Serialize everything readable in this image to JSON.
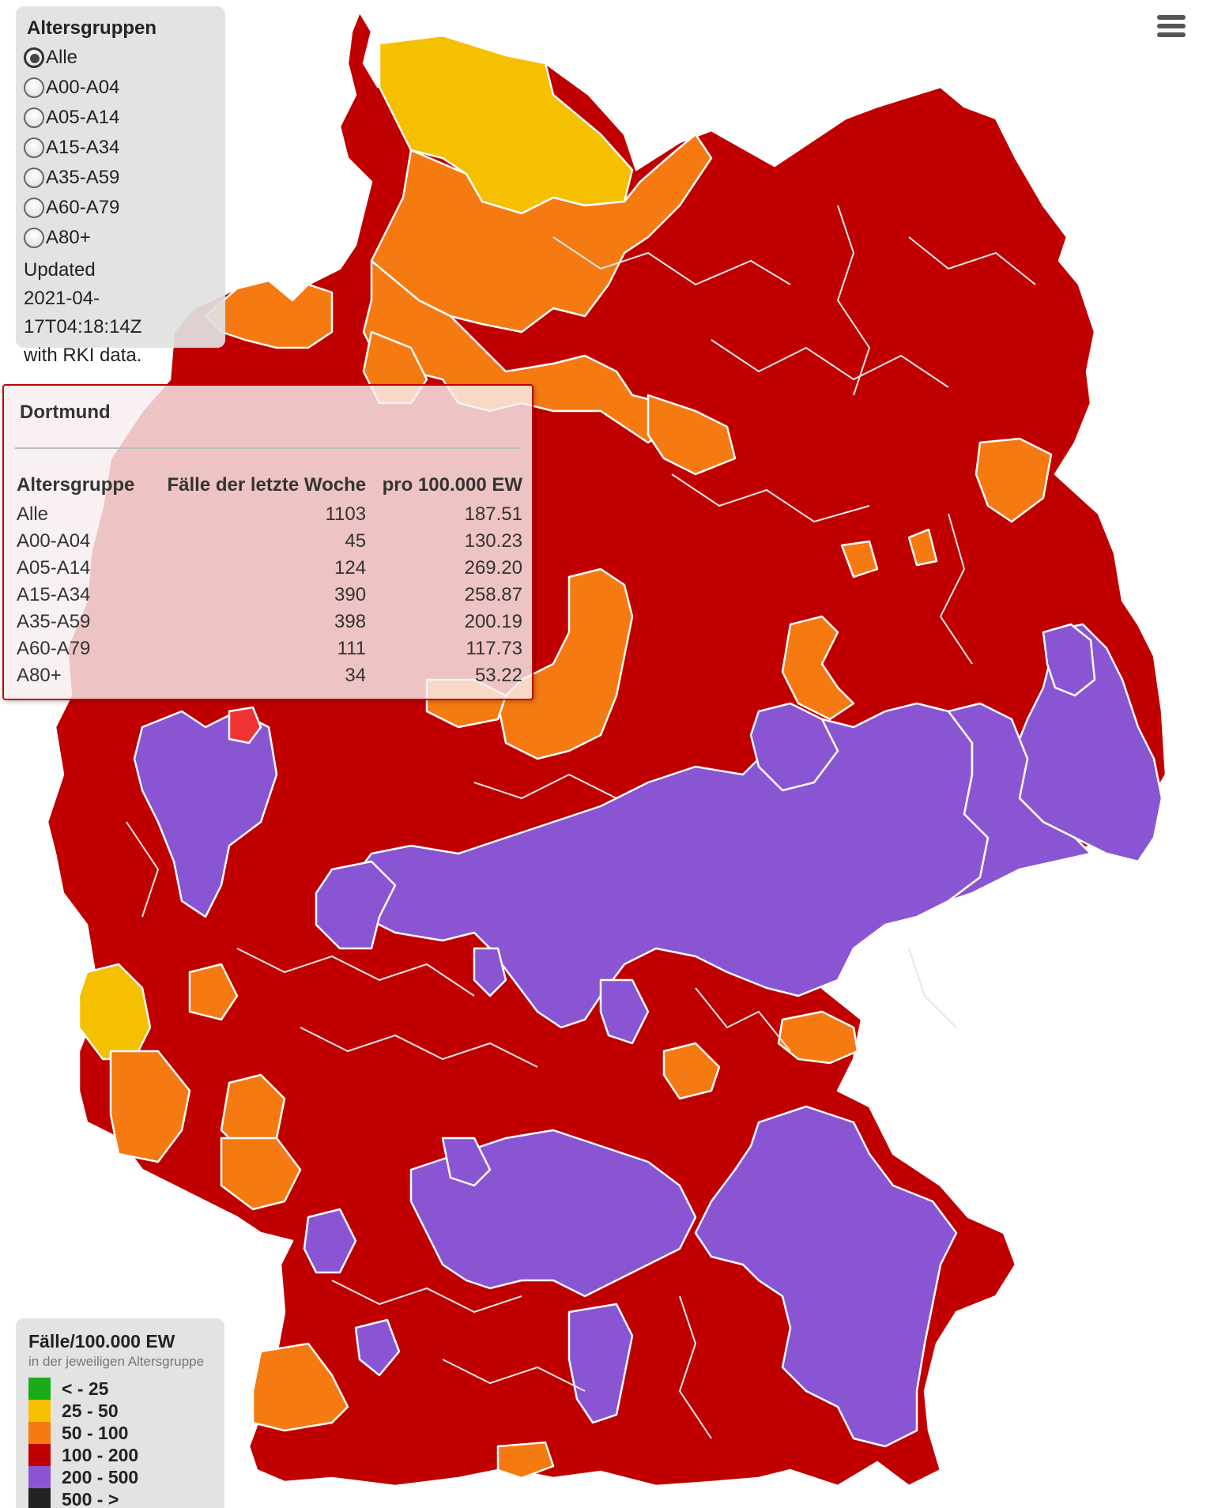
{
  "age_panel": {
    "title": "Altersgruppen",
    "options": [
      {
        "label": "Alle",
        "selected": true
      },
      {
        "label": "A00-A04",
        "selected": false
      },
      {
        "label": "A05-A14",
        "selected": false
      },
      {
        "label": "A15-A34",
        "selected": false
      },
      {
        "label": "A35-A59",
        "selected": false
      },
      {
        "label": "A60-A79",
        "selected": false
      },
      {
        "label": "A80+",
        "selected": false
      }
    ],
    "updated_lines": [
      "Updated",
      "2021-04-17T04:18:14Z",
      "with RKI data."
    ]
  },
  "menu": {
    "icon": "hamburger-menu-icon"
  },
  "tooltip": {
    "district": "Dortmund",
    "columns": [
      "Altersgruppe",
      "Fälle der letzte Woche",
      "pro 100.000 EW"
    ],
    "rows": [
      [
        "Alle",
        "1103",
        "187.51"
      ],
      [
        "A00-A04",
        "45",
        "130.23"
      ],
      [
        "A05-A14",
        "124",
        "269.20"
      ],
      [
        "A15-A34",
        "390",
        "258.87"
      ],
      [
        "A35-A59",
        "398",
        "200.19"
      ],
      [
        "A60-A79",
        "111",
        "117.73"
      ],
      [
        "A80+",
        "34",
        "53.22"
      ]
    ]
  },
  "legend": {
    "title": "Fälle/100.000 EW",
    "subtitle": "in der jeweiligen Altersgruppe",
    "items": [
      {
        "label": "< - 25",
        "color": "#1aaa1a"
      },
      {
        "label": "25 - 50",
        "color": "#f5c000"
      },
      {
        "label": "50 - 100",
        "color": "#f57a12"
      },
      {
        "label": "100 - 200",
        "color": "#c00000"
      },
      {
        "label": "200 - 500",
        "color": "#8a55d2"
      },
      {
        "label": "500 - >",
        "color": "#222222"
      }
    ]
  },
  "map_colors": {
    "base": "#c00000",
    "orange": "#f57a12",
    "yellow": "#f5c000",
    "purple": "#8a55d2",
    "highlight": "#ee3333"
  }
}
